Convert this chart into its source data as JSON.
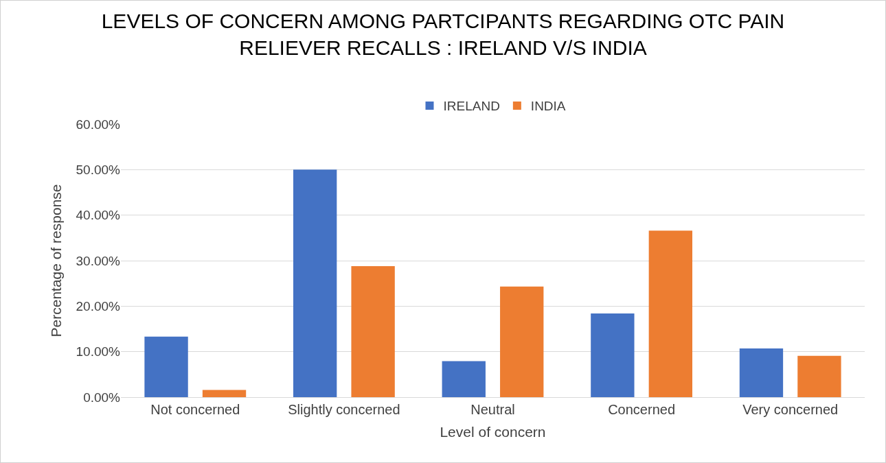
{
  "chart_data": {
    "type": "bar",
    "title": "LEVELS OF CONCERN AMONG PARTCIPANTS REGARDING OTC PAIN RELIEVER RECALLS : IRELAND V/S INDIA",
    "xlabel": "Level of concern",
    "ylabel": "Percentage of response",
    "categories": [
      "Not concerned",
      "Slightly concerned",
      "Neutral",
      "Concerned",
      "Very concerned"
    ],
    "series": [
      {
        "name": "IRELAND",
        "color": "#4472c4",
        "values": [
          13.3,
          50,
          7.9,
          18.4,
          10.7
        ]
      },
      {
        "name": "INDIA",
        "color": "#ed7d31",
        "values": [
          1.6,
          28.8,
          24.3,
          36.6,
          9.1
        ]
      }
    ],
    "ylim": [
      0,
      60
    ],
    "yticks": [
      {
        "value": 0,
        "label": "0.00%"
      },
      {
        "value": 10,
        "label": "10.00%"
      },
      {
        "value": 20,
        "label": "20.00%"
      },
      {
        "value": 30,
        "label": "30.00%"
      },
      {
        "value": 40,
        "label": "40.00%"
      },
      {
        "value": 50,
        "label": "50.00%"
      },
      {
        "value": 60,
        "label": "60.00%"
      }
    ],
    "grid": "y",
    "legend": "top"
  }
}
